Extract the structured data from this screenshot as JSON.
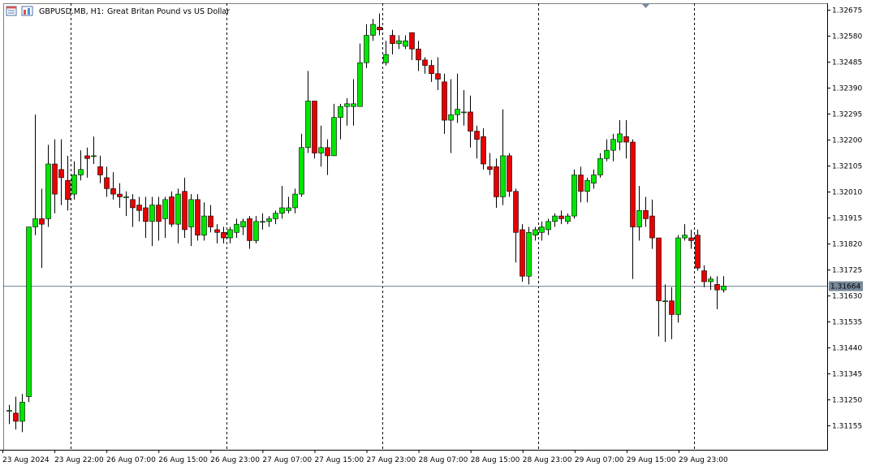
{
  "header": {
    "symbol_timeframe": "GBPUSD.MB, H1:",
    "description": "Great Britan Pound vs US Dollar"
  },
  "current_price_label": "1.31664",
  "colors": {
    "bull": "#00e600",
    "bear": "#e60000",
    "candle_outline": "#000000",
    "wick": "#000000",
    "grid_vline": "#000000",
    "price_line": "#778899",
    "price_label_bg": "#778899",
    "price_label_text": "#ffffff",
    "axis_line": "#000000"
  },
  "chart_data": {
    "type": "candlestick",
    "symbol": "GBPUSD.MB",
    "timeframe": "H1",
    "ylim": [
      1.311,
      1.327
    ],
    "current_price": 1.31664,
    "y_ticks": [
      "1.32675",
      "1.32580",
      "1.32485",
      "1.32390",
      "1.32295",
      "1.32200",
      "1.32105",
      "1.32010",
      "1.31915",
      "1.31820",
      "1.31725",
      "1.31630",
      "1.31535",
      "1.31440",
      "1.31345",
      "1.31250",
      "1.31155"
    ],
    "x_labels": [
      "23 Aug 2024",
      "23 Aug 22:00",
      "26 Aug 07:00",
      "26 Aug 15:00",
      "26 Aug 23:00",
      "27 Aug 07:00",
      "27 Aug 15:00",
      "27 Aug 23:00",
      "28 Aug 07:00",
      "28 Aug 15:00",
      "28 Aug 23:00",
      "29 Aug 07:00",
      "29 Aug 15:00",
      "29 Aug 23:00"
    ],
    "candles": [
      {
        "o": 1.3121,
        "h": 1.3123,
        "l": 1.3116,
        "c": 1.3121
      },
      {
        "o": 1.312,
        "h": 1.3126,
        "l": 1.3114,
        "c": 1.3117
      },
      {
        "o": 1.3117,
        "h": 1.3127,
        "l": 1.3113,
        "c": 1.3124
      },
      {
        "o": 1.3126,
        "h": 1.3188,
        "l": 1.3124,
        "c": 1.3188
      },
      {
        "o": 1.3188,
        "h": 1.3229,
        "l": 1.3185,
        "c": 1.3191
      },
      {
        "o": 1.3191,
        "h": 1.3202,
        "l": 1.3173,
        "c": 1.3189
      },
      {
        "o": 1.3191,
        "h": 1.3218,
        "l": 1.3188,
        "c": 1.3211
      },
      {
        "o": 1.3211,
        "h": 1.322,
        "l": 1.3193,
        "c": 1.32
      },
      {
        "o": 1.3209,
        "h": 1.322,
        "l": 1.3196,
        "c": 1.3206
      },
      {
        "o": 1.3205,
        "h": 1.3214,
        "l": 1.3194,
        "c": 1.3198
      },
      {
        "o": 1.32,
        "h": 1.3212,
        "l": 1.3198,
        "c": 1.3207
      },
      {
        "o": 1.3207,
        "h": 1.3216,
        "l": 1.3205,
        "c": 1.3209
      },
      {
        "o": 1.3214,
        "h": 1.3217,
        "l": 1.3206,
        "c": 1.3213
      },
      {
        "o": 1.3214,
        "h": 1.3221,
        "l": 1.3211,
        "c": 1.3214
      },
      {
        "o": 1.321,
        "h": 1.3214,
        "l": 1.3204,
        "c": 1.3207
      },
      {
        "o": 1.3206,
        "h": 1.321,
        "l": 1.3199,
        "c": 1.3202
      },
      {
        "o": 1.3202,
        "h": 1.3208,
        "l": 1.3198,
        "c": 1.32
      },
      {
        "o": 1.32,
        "h": 1.3204,
        "l": 1.3195,
        "c": 1.3199
      },
      {
        "o": 1.3199,
        "h": 1.3201,
        "l": 1.3192,
        "c": 1.3199
      },
      {
        "o": 1.3198,
        "h": 1.32,
        "l": 1.3188,
        "c": 1.3195
      },
      {
        "o": 1.3196,
        "h": 1.3199,
        "l": 1.319,
        "c": 1.3194
      },
      {
        "o": 1.3195,
        "h": 1.3199,
        "l": 1.3184,
        "c": 1.319
      },
      {
        "o": 1.319,
        "h": 1.3199,
        "l": 1.3181,
        "c": 1.3196
      },
      {
        "o": 1.3196,
        "h": 1.3199,
        "l": 1.3183,
        "c": 1.319
      },
      {
        "o": 1.3191,
        "h": 1.3199,
        "l": 1.3184,
        "c": 1.3198
      },
      {
        "o": 1.3199,
        "h": 1.3201,
        "l": 1.3188,
        "c": 1.3189
      },
      {
        "o": 1.3189,
        "h": 1.3202,
        "l": 1.3182,
        "c": 1.32
      },
      {
        "o": 1.3201,
        "h": 1.3206,
        "l": 1.3184,
        "c": 1.3187
      },
      {
        "o": 1.3188,
        "h": 1.32,
        "l": 1.3181,
        "c": 1.3198
      },
      {
        "o": 1.3198,
        "h": 1.32,
        "l": 1.3183,
        "c": 1.3185
      },
      {
        "o": 1.3185,
        "h": 1.3197,
        "l": 1.3183,
        "c": 1.3192
      },
      {
        "o": 1.3192,
        "h": 1.3196,
        "l": 1.3186,
        "c": 1.3188
      },
      {
        "o": 1.3187,
        "h": 1.3189,
        "l": 1.3182,
        "c": 1.3186
      },
      {
        "o": 1.3186,
        "h": 1.3188,
        "l": 1.3182,
        "c": 1.3184
      },
      {
        "o": 1.3184,
        "h": 1.3188,
        "l": 1.3182,
        "c": 1.3187
      },
      {
        "o": 1.3186,
        "h": 1.3191,
        "l": 1.3184,
        "c": 1.3189
      },
      {
        "o": 1.3188,
        "h": 1.3191,
        "l": 1.3185,
        "c": 1.319
      },
      {
        "o": 1.3191,
        "h": 1.3192,
        "l": 1.318,
        "c": 1.3183
      },
      {
        "o": 1.3183,
        "h": 1.3192,
        "l": 1.3182,
        "c": 1.319
      },
      {
        "o": 1.319,
        "h": 1.3193,
        "l": 1.3187,
        "c": 1.319
      },
      {
        "o": 1.319,
        "h": 1.3192,
        "l": 1.3188,
        "c": 1.3191
      },
      {
        "o": 1.3191,
        "h": 1.3194,
        "l": 1.3189,
        "c": 1.3193
      },
      {
        "o": 1.3193,
        "h": 1.3203,
        "l": 1.3191,
        "c": 1.3195
      },
      {
        "o": 1.3194,
        "h": 1.3199,
        "l": 1.3193,
        "c": 1.3195
      },
      {
        "o": 1.3195,
        "h": 1.3202,
        "l": 1.3193,
        "c": 1.32
      },
      {
        "o": 1.32,
        "h": 1.3222,
        "l": 1.3199,
        "c": 1.3217
      },
      {
        "o": 1.3217,
        "h": 1.3245,
        "l": 1.3215,
        "c": 1.3234
      },
      {
        "o": 1.3234,
        "h": 1.3234,
        "l": 1.3213,
        "c": 1.3215
      },
      {
        "o": 1.3215,
        "h": 1.3225,
        "l": 1.321,
        "c": 1.3217
      },
      {
        "o": 1.3217,
        "h": 1.322,
        "l": 1.3207,
        "c": 1.3214
      },
      {
        "o": 1.3214,
        "h": 1.3233,
        "l": 1.3214,
        "c": 1.3228
      },
      {
        "o": 1.3228,
        "h": 1.3233,
        "l": 1.322,
        "c": 1.3232
      },
      {
        "o": 1.3232,
        "h": 1.3235,
        "l": 1.3225,
        "c": 1.3233
      },
      {
        "o": 1.3232,
        "h": 1.3242,
        "l": 1.3225,
        "c": 1.3233
      },
      {
        "o": 1.3232,
        "h": 1.3255,
        "l": 1.3232,
        "c": 1.3248
      },
      {
        "o": 1.3248,
        "h": 1.3262,
        "l": 1.3246,
        "c": 1.3258
      },
      {
        "o": 1.3258,
        "h": 1.3264,
        "l": 1.3256,
        "c": 1.3262
      },
      {
        "o": 1.3261,
        "h": 1.3266,
        "l": 1.3258,
        "c": 1.326
      },
      {
        "o": 1.3248,
        "h": 1.3256,
        "l": 1.3247,
        "c": 1.3251
      },
      {
        "o": 1.3258,
        "h": 1.326,
        "l": 1.3251,
        "c": 1.3255
      },
      {
        "o": 1.3255,
        "h": 1.3258,
        "l": 1.3253,
        "c": 1.3256
      },
      {
        "o": 1.3254,
        "h": 1.3258,
        "l": 1.3253,
        "c": 1.3256
      },
      {
        "o": 1.3259,
        "h": 1.3259,
        "l": 1.3249,
        "c": 1.3253
      },
      {
        "o": 1.3253,
        "h": 1.3256,
        "l": 1.3245,
        "c": 1.3249
      },
      {
        "o": 1.3249,
        "h": 1.325,
        "l": 1.3244,
        "c": 1.3247
      },
      {
        "o": 1.3247,
        "h": 1.3249,
        "l": 1.3241,
        "c": 1.3244
      },
      {
        "o": 1.3244,
        "h": 1.325,
        "l": 1.3238,
        "c": 1.3242
      },
      {
        "o": 1.3241,
        "h": 1.3244,
        "l": 1.3222,
        "c": 1.3227
      },
      {
        "o": 1.3227,
        "h": 1.3242,
        "l": 1.3215,
        "c": 1.3229
      },
      {
        "o": 1.3229,
        "h": 1.3244,
        "l": 1.3226,
        "c": 1.3231
      },
      {
        "o": 1.323,
        "h": 1.3238,
        "l": 1.3225,
        "c": 1.323
      },
      {
        "o": 1.323,
        "h": 1.3236,
        "l": 1.3217,
        "c": 1.3223
      },
      {
        "o": 1.3223,
        "h": 1.3225,
        "l": 1.3213,
        "c": 1.322
      },
      {
        "o": 1.3221,
        "h": 1.3224,
        "l": 1.3209,
        "c": 1.3211
      },
      {
        "o": 1.321,
        "h": 1.3215,
        "l": 1.3207,
        "c": 1.3209
      },
      {
        "o": 1.321,
        "h": 1.3213,
        "l": 1.3195,
        "c": 1.3199
      },
      {
        "o": 1.3199,
        "h": 1.3231,
        "l": 1.3196,
        "c": 1.3214
      },
      {
        "o": 1.3214,
        "h": 1.3215,
        "l": 1.3199,
        "c": 1.3201
      },
      {
        "o": 1.3201,
        "h": 1.3202,
        "l": 1.3175,
        "c": 1.3186
      },
      {
        "o": 1.3187,
        "h": 1.3189,
        "l": 1.3168,
        "c": 1.317
      },
      {
        "o": 1.317,
        "h": 1.3188,
        "l": 1.3167,
        "c": 1.3186
      },
      {
        "o": 1.3185,
        "h": 1.3188,
        "l": 1.3183,
        "c": 1.3187
      },
      {
        "o": 1.3186,
        "h": 1.319,
        "l": 1.3183,
        "c": 1.3188
      },
      {
        "o": 1.3187,
        "h": 1.3191,
        "l": 1.3185,
        "c": 1.319
      },
      {
        "o": 1.319,
        "h": 1.3193,
        "l": 1.3188,
        "c": 1.3192
      },
      {
        "o": 1.3192,
        "h": 1.3194,
        "l": 1.3189,
        "c": 1.3191
      },
      {
        "o": 1.319,
        "h": 1.3193,
        "l": 1.3189,
        "c": 1.3192
      },
      {
        "o": 1.3192,
        "h": 1.3209,
        "l": 1.3191,
        "c": 1.3207
      },
      {
        "o": 1.3207,
        "h": 1.321,
        "l": 1.3197,
        "c": 1.3201
      },
      {
        "o": 1.3201,
        "h": 1.3206,
        "l": 1.3197,
        "c": 1.3205
      },
      {
        "o": 1.3204,
        "h": 1.3209,
        "l": 1.3202,
        "c": 1.3207
      },
      {
        "o": 1.3207,
        "h": 1.3215,
        "l": 1.3206,
        "c": 1.3213
      },
      {
        "o": 1.3213,
        "h": 1.322,
        "l": 1.3212,
        "c": 1.3216
      },
      {
        "o": 1.3216,
        "h": 1.3222,
        "l": 1.3212,
        "c": 1.322
      },
      {
        "o": 1.3219,
        "h": 1.3227,
        "l": 1.3216,
        "c": 1.3222
      },
      {
        "o": 1.3221,
        "h": 1.3227,
        "l": 1.3213,
        "c": 1.3219
      },
      {
        "o": 1.3219,
        "h": 1.322,
        "l": 1.3169,
        "c": 1.3188
      },
      {
        "o": 1.3188,
        "h": 1.3203,
        "l": 1.3183,
        "c": 1.3194
      },
      {
        "o": 1.3194,
        "h": 1.3199,
        "l": 1.3188,
        "c": 1.3191
      },
      {
        "o": 1.3192,
        "h": 1.3198,
        "l": 1.318,
        "c": 1.3184
      },
      {
        "o": 1.3184,
        "h": 1.3184,
        "l": 1.3148,
        "c": 1.3161
      },
      {
        "o": 1.3161,
        "h": 1.3167,
        "l": 1.3146,
        "c": 1.3161
      },
      {
        "o": 1.3161,
        "h": 1.3166,
        "l": 1.3147,
        "c": 1.3156
      },
      {
        "o": 1.3156,
        "h": 1.3185,
        "l": 1.3153,
        "c": 1.3184
      },
      {
        "o": 1.3184,
        "h": 1.3189,
        "l": 1.3183,
        "c": 1.3185
      },
      {
        "o": 1.3184,
        "h": 1.3187,
        "l": 1.318,
        "c": 1.3183
      },
      {
        "o": 1.3185,
        "h": 1.3187,
        "l": 1.3172,
        "c": 1.3173
      },
      {
        "o": 1.3172,
        "h": 1.3174,
        "l": 1.3166,
        "c": 1.3168
      },
      {
        "o": 1.3168,
        "h": 1.317,
        "l": 1.3165,
        "c": 1.3169
      },
      {
        "o": 1.3167,
        "h": 1.317,
        "l": 1.3158,
        "c": 1.3165
      },
      {
        "o": 1.3165,
        "h": 1.317,
        "l": 1.3164,
        "c": 1.31664
      }
    ],
    "vline_after_candle_index": [
      9,
      33,
      57,
      81,
      105
    ]
  }
}
